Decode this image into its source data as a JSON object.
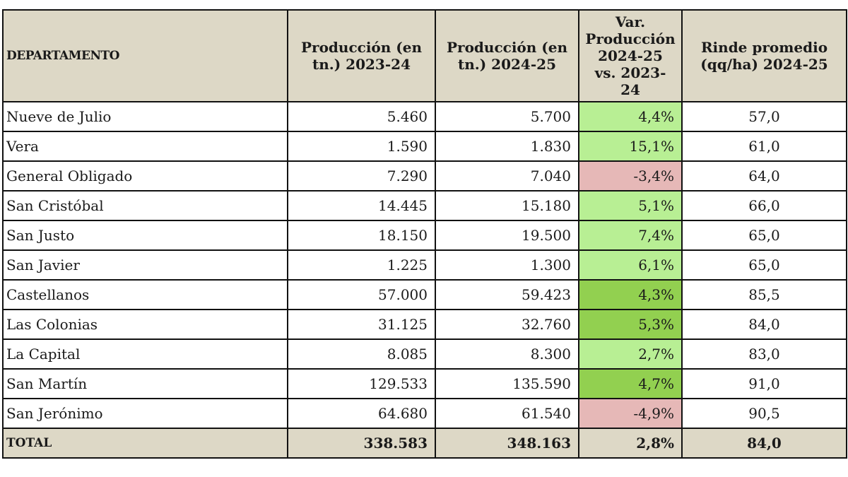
{
  "headers": [
    "DEPARTAMENTO",
    "Producción (en tn.) 2023-24",
    "Producción (en tn.) 2024-25",
    "Var. Producción 2024-25 vs. 2023-24",
    "Rinde promedio (qq/ha) 2024-25"
  ],
  "colors": {
    "header": "#ddd8c6",
    "light_green": "#b8ef94",
    "dark_green": "#92d050",
    "red": "#e6b8b7"
  },
  "rows": [
    {
      "dept": "Nueve de Julio",
      "p2324": "5.460",
      "p2425": "5.700",
      "var": "4,4%",
      "rinde": "57,0",
      "shade": "lg"
    },
    {
      "dept": "Vera",
      "p2324": "1.590",
      "p2425": "1.830",
      "var": "15,1%",
      "rinde": "61,0",
      "shade": "lg"
    },
    {
      "dept": "General Obligado",
      "p2324": "7.290",
      "p2425": "7.040",
      "var": "-3,4%",
      "rinde": "64,0",
      "shade": "pk"
    },
    {
      "dept": "San Cristóbal",
      "p2324": "14.445",
      "p2425": "15.180",
      "var": "5,1%",
      "rinde": "66,0",
      "shade": "lg"
    },
    {
      "dept": "San Justo",
      "p2324": "18.150",
      "p2425": "19.500",
      "var": "7,4%",
      "rinde": "65,0",
      "shade": "lg"
    },
    {
      "dept": "San Javier",
      "p2324": "1.225",
      "p2425": "1.300",
      "var": "6,1%",
      "rinde": "65,0",
      "shade": "lg"
    },
    {
      "dept": "Castellanos",
      "p2324": "57.000",
      "p2425": "59.423",
      "var": "4,3%",
      "rinde": "85,5",
      "shade": "dg"
    },
    {
      "dept": "Las Colonias",
      "p2324": "31.125",
      "p2425": "32.760",
      "var": "5,3%",
      "rinde": "84,0",
      "shade": "dg"
    },
    {
      "dept": "La Capital",
      "p2324": "8.085",
      "p2425": "8.300",
      "var": "2,7%",
      "rinde": "83,0",
      "shade": "lg"
    },
    {
      "dept": "San Martín",
      "p2324": "129.533",
      "p2425": "135.590",
      "var": "4,7%",
      "rinde": "91,0",
      "shade": "dg"
    },
    {
      "dept": "San Jerónimo",
      "p2324": "64.680",
      "p2425": "61.540",
      "var": "-4,9%",
      "rinde": "90,5",
      "shade": "pk"
    }
  ],
  "total": {
    "dept": "TOTAL",
    "p2324": "338.583",
    "p2425": "348.163",
    "var": "2,8%",
    "rinde": "84,0"
  }
}
